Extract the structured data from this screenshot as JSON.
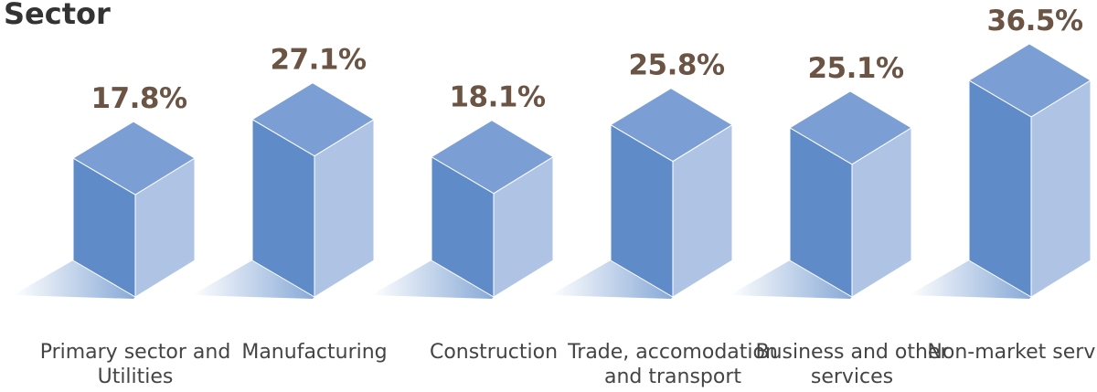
{
  "chart_data": {
    "type": "bar3d",
    "title": "Sector",
    "categories": [
      "Primary sector and Utilities",
      "Manufacturing",
      "Construction",
      "Trade, accomodation and transport",
      "Business and other services",
      "Non-market services"
    ],
    "values": [
      17.8,
      27.1,
      18.1,
      25.8,
      25.1,
      36.5
    ],
    "value_labels": [
      "17.8%",
      "27.1%",
      "18.1%",
      "25.8%",
      "25.1%",
      "36.5%"
    ],
    "colors": {
      "left": "#5f8cc9",
      "right": "#afc3e4",
      "top": "#7b9fd4"
    }
  }
}
